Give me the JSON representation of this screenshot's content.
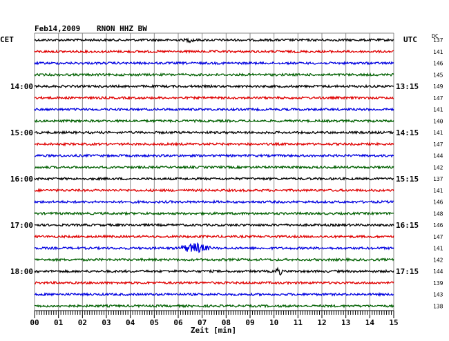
{
  "header": {
    "date": "Feb14,2009",
    "station": "RNON HHZ BW",
    "left_label": "CET",
    "right_label": "UTC",
    "dc_label": "DC"
  },
  "chart_data": {
    "type": "line",
    "title": "Feb14,2009  RNON HHZ BW",
    "xlabel": "Zeit [min]",
    "xlim": [
      0,
      15
    ],
    "x_ticks": [
      "00",
      "01",
      "02",
      "03",
      "04",
      "05",
      "06",
      "07",
      "08",
      "09",
      "10",
      "11",
      "12",
      "13",
      "14",
      "15"
    ],
    "rows_per_hour": 4,
    "grid": true,
    "left_hour_labels": [
      "14:00",
      "15:00",
      "16:00",
      "17:00",
      "18:00"
    ],
    "right_hour_labels": [
      "13:15",
      "14:15",
      "15:15",
      "16:15",
      "17:15"
    ],
    "dc_values": [
      "137",
      "141",
      "146",
      "145",
      "149",
      "147",
      "141",
      "140",
      "141",
      "147",
      "144",
      "142",
      "137",
      "141",
      "146",
      "148",
      "146",
      "147",
      "141",
      "142",
      "144",
      "139",
      "143",
      "138"
    ],
    "trace_colors": [
      "#000000",
      "#e00000",
      "#0000e0",
      "#006000"
    ],
    "events": [
      {
        "row": 18,
        "minute": 6.7,
        "duration_min": 1.5,
        "amplitude": "high"
      },
      {
        "row": 20,
        "minute": 10.2,
        "duration_min": 0.3,
        "amplitude": "spike"
      },
      {
        "row": 0,
        "minute": 6.5,
        "duration_min": 0.6,
        "amplitude": "low"
      }
    ]
  }
}
